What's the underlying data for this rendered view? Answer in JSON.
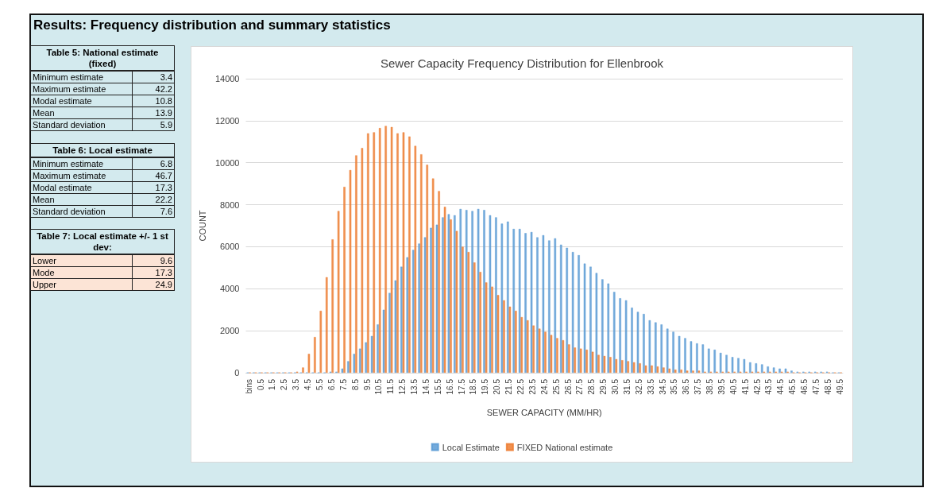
{
  "chart_data": [
    {
      "type": "other",
      "title": "Results: Frequency distribution and summary statistics"
    },
    {
      "type": "other",
      "title": "Table 5: National estimate (fixed)",
      "categories": [
        "Minimum estimate",
        "Maximum estimate",
        "Modal estimate",
        "Mean",
        "Standard deviation"
      ],
      "values": [
        3.4,
        42.2,
        10.8,
        13.9,
        5.9
      ],
      "data_labels": true
    },
    {
      "type": "other",
      "title": "Table 6: Local estimate",
      "categories": [
        "Minimum estimate",
        "Maximum estimate",
        "Modal estimate",
        "Mean",
        "Standard deviation"
      ],
      "values": [
        6.8,
        46.7,
        17.3,
        22.2,
        7.6
      ],
      "data_labels": true
    },
    {
      "type": "other",
      "title": "Table 7: Local estimate +/- 1 st dev:",
      "categories": [
        "Lower",
        "Mode",
        "Upper"
      ],
      "values": [
        9.6,
        17.3,
        24.9
      ],
      "data_labels": true
    },
    {
      "type": "bar",
      "title": "Sewer Capacity Frequency Distribution for Ellenbrook",
      "xlabel": "SEWER CAPACITY (MM/HR)",
      "ylabel": "COUNT",
      "categories": [
        "bins",
        null,
        "0.5",
        null,
        "1.5",
        null,
        "2.5",
        null,
        "3.5",
        null,
        "4.5",
        null,
        "5.5",
        null,
        "6.5",
        null,
        "7.5",
        null,
        "8.5",
        null,
        "9.5",
        null,
        "10.5",
        null,
        "11.5",
        null,
        "12.5",
        null,
        "13.5",
        null,
        "14.5",
        null,
        "15.5",
        null,
        "16.5",
        null,
        "17.5",
        null,
        "18.5",
        null,
        "19.5",
        null,
        "20.5",
        null,
        "21.5",
        null,
        "22.5",
        null,
        "23.5",
        null,
        "24.5",
        null,
        "25.5",
        null,
        "26.5",
        null,
        "27.5",
        null,
        "28.5",
        null,
        "29.5",
        null,
        "30.5",
        null,
        "31.5",
        null,
        "32.5",
        null,
        "33.5",
        null,
        "34.5",
        null,
        "35.5",
        null,
        "36.5",
        null,
        "37.5",
        null,
        "38.5",
        null,
        "39.5",
        null,
        "40.5",
        null,
        "41.5",
        null,
        "42.5",
        null,
        "43.5",
        null,
        "44.5",
        null,
        "45.5",
        null,
        "46.5",
        null,
        "47.5",
        null,
        "48.5",
        null,
        "49.5"
      ],
      "series": [
        {
          "name": "Local Estimate",
          "color": "#5b9bd5",
          "values": [
            0,
            0,
            0,
            0,
            0,
            0,
            0,
            0,
            0,
            0,
            0,
            0,
            0,
            0,
            50,
            50,
            200,
            550,
            900,
            1150,
            1450,
            1750,
            2300,
            3000,
            3800,
            4400,
            5050,
            5500,
            5850,
            6150,
            6450,
            6900,
            7050,
            7400,
            7550,
            7500,
            7800,
            7750,
            7700,
            7800,
            7750,
            7500,
            7400,
            7100,
            7200,
            6850,
            6850,
            6650,
            6700,
            6450,
            6550,
            6300,
            6400,
            6100,
            5950,
            5750,
            5600,
            5200,
            5050,
            4750,
            4450,
            4250,
            3850,
            3550,
            3450,
            3100,
            2900,
            2800,
            2500,
            2400,
            2300,
            2100,
            1950,
            1750,
            1650,
            1500,
            1400,
            1350,
            1150,
            1100,
            950,
            850,
            750,
            700,
            650,
            500,
            450,
            400,
            300,
            250,
            200,
            200,
            100,
            50,
            50,
            50,
            50,
            50,
            50,
            0,
            0
          ]
        },
        {
          "name": "FIXED National estimate",
          "color": "#ed7d31",
          "values": [
            0,
            0,
            0,
            0,
            0,
            0,
            0,
            0,
            50,
            250,
            900,
            1700,
            2950,
            4550,
            6350,
            7700,
            8850,
            9650,
            10350,
            10700,
            11400,
            11450,
            11650,
            11750,
            11700,
            11400,
            11450,
            11250,
            10800,
            10400,
            9900,
            9250,
            8650,
            7900,
            7300,
            6750,
            6000,
            5750,
            5250,
            4800,
            4300,
            4100,
            3700,
            3450,
            3150,
            2950,
            2650,
            2500,
            2250,
            2100,
            1950,
            1800,
            1650,
            1550,
            1350,
            1200,
            1150,
            1100,
            1000,
            850,
            800,
            750,
            650,
            600,
            550,
            500,
            450,
            350,
            350,
            300,
            250,
            200,
            150,
            150,
            100,
            100,
            100,
            50,
            50,
            50,
            50,
            50,
            50,
            50,
            50,
            50,
            50,
            50,
            50,
            50,
            50,
            50,
            0,
            0,
            0,
            0,
            0,
            0,
            0,
            0,
            0
          ]
        }
      ],
      "ylim": [
        0,
        14000
      ],
      "yticks": [
        0,
        2000,
        4000,
        6000,
        8000,
        10000,
        12000,
        14000
      ],
      "grid": "y",
      "legend": "bottom"
    }
  ]
}
